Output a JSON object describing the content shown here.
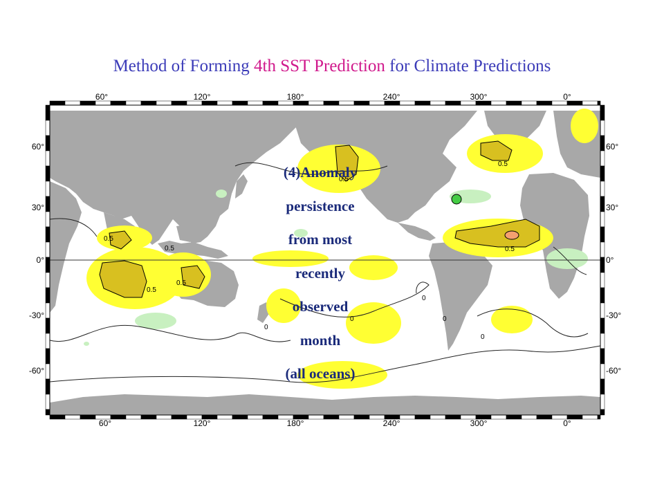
{
  "title": {
    "part1": "Method of Forming ",
    "part2": "4th SST Prediction",
    "part3": " for Climate Predictions",
    "color_main": "#3b3bb8",
    "color_highlight": "#d0198c"
  },
  "caption": {
    "lines": [
      "(4)Anomaly",
      "persistence",
      "from most",
      "recently",
      "observed",
      "month",
      "(all oceans)"
    ],
    "color": "#1a2a7a"
  },
  "map": {
    "x_ticks": [
      "60°",
      "120°",
      "180°",
      "240°",
      "300°",
      "0°"
    ],
    "y_ticks": [
      "60°",
      "30°",
      "0°",
      "-30°",
      "-60°"
    ],
    "contour_labels": [
      "0.5",
      "0.5",
      "0.5",
      "0.5",
      "0.5",
      "0.5",
      "0.5",
      "0",
      "0",
      "0",
      "0",
      "0"
    ],
    "colors": {
      "land": "#a8a8a8",
      "ocean": "#ffffff",
      "anomaly_positive_weak": "#ffff33",
      "anomaly_positive_strong": "#d8c020",
      "anomaly_positive_peak": "#f4a070",
      "anomaly_negative_weak": "#c8f0c0",
      "anomaly_negative_strong": "#44cc44"
    }
  }
}
